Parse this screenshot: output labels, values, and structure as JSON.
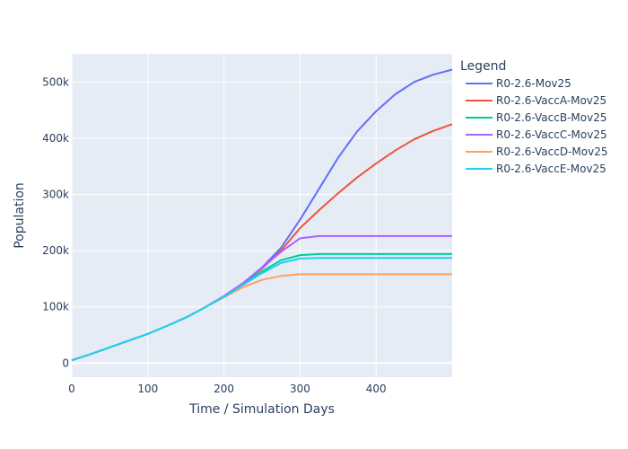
{
  "chart_data": {
    "type": "line",
    "title": "",
    "xlabel": "Time / Simulation Days",
    "ylabel": "Population",
    "xlim": [
      0,
      500
    ],
    "ylim": [
      -25000,
      550000
    ],
    "x_ticks": [
      0,
      100,
      200,
      300,
      400
    ],
    "x_tick_labels": [
      "0",
      "100",
      "200",
      "300",
      "400"
    ],
    "y_ticks": [
      0,
      100000,
      200000,
      300000,
      400000,
      500000
    ],
    "y_tick_labels": [
      "0",
      "100k",
      "200k",
      "300k",
      "400k",
      "500k"
    ],
    "grid": true,
    "legend": {
      "title": "Legend",
      "placement": "right"
    },
    "x": [
      0,
      25,
      50,
      75,
      100,
      125,
      150,
      175,
      200,
      225,
      250,
      275,
      300,
      325,
      350,
      375,
      400,
      425,
      450,
      475,
      500
    ],
    "series": [
      {
        "name": "R0-2.6-Mov25",
        "color": "#636efa",
        "values": [
          5000,
          16000,
          28000,
          40000,
          52000,
          66000,
          81000,
          99000,
          119000,
          142000,
          170000,
          205000,
          255000,
          310000,
          365000,
          412000,
          448000,
          478000,
          500000,
          513000,
          522000
        ]
      },
      {
        "name": "R0-2.6-VaccA-Mov25",
        "color": "#ef553b",
        "values": [
          5000,
          16000,
          28000,
          40000,
          52000,
          66000,
          81000,
          99000,
          119000,
          142000,
          168000,
          200000,
          240000,
          272000,
          302000,
          330000,
          355000,
          378000,
          398000,
          413000,
          425000
        ]
      },
      {
        "name": "R0-2.6-VaccB-Mov25",
        "color": "#00cc96",
        "values": [
          5000,
          16000,
          28000,
          40000,
          52000,
          66000,
          81000,
          99000,
          119000,
          141000,
          163000,
          183000,
          192000,
          194000,
          194000,
          194000,
          194000,
          194000,
          194000,
          194000,
          194000
        ]
      },
      {
        "name": "R0-2.6-VaccC-Mov25",
        "color": "#ab63fa",
        "values": [
          5000,
          16000,
          28000,
          40000,
          52000,
          66000,
          81000,
          99000,
          119000,
          142000,
          169000,
          198000,
          222000,
          226000,
          226000,
          226000,
          226000,
          226000,
          226000,
          226000,
          226000
        ]
      },
      {
        "name": "R0-2.6-VaccD-Mov25",
        "color": "#ffa15a",
        "values": [
          5000,
          16000,
          28000,
          40000,
          52000,
          66000,
          81000,
          99000,
          117000,
          135000,
          148000,
          155000,
          158000,
          158000,
          158000,
          158000,
          158000,
          158000,
          158000,
          158000,
          158000
        ]
      },
      {
        "name": "R0-2.6-VaccE-Mov25",
        "color": "#19d3f3",
        "values": [
          5000,
          16000,
          28000,
          40000,
          52000,
          66000,
          81000,
          99000,
          118000,
          139000,
          160000,
          178000,
          186000,
          187000,
          187000,
          187000,
          187000,
          187000,
          187000,
          187000,
          187000
        ]
      }
    ]
  }
}
